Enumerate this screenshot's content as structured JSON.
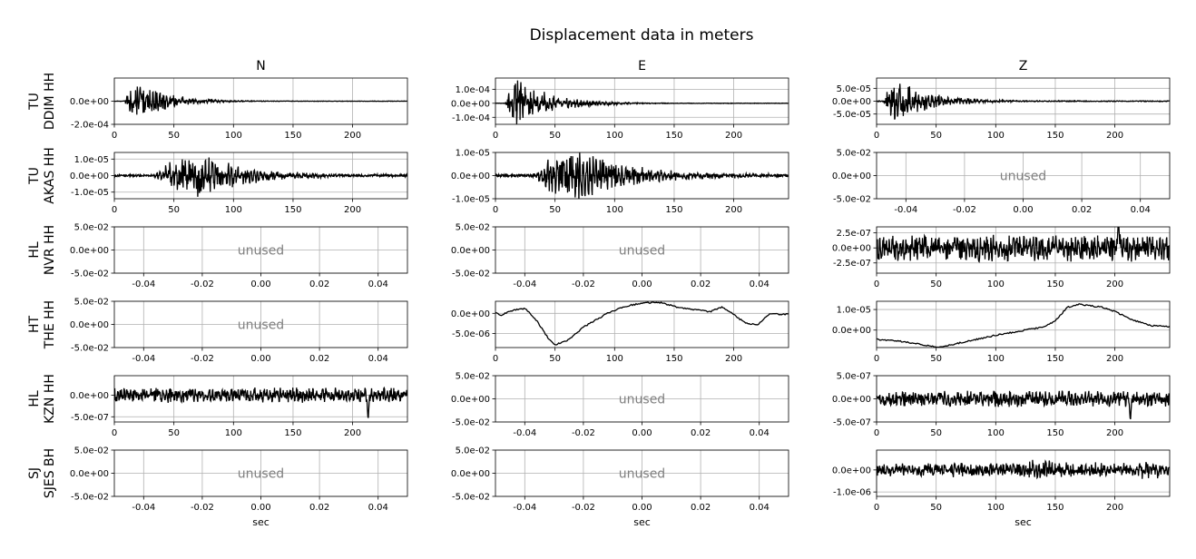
{
  "figure": {
    "title": "Displacement data in meters",
    "column_titles": [
      "N",
      "E",
      "Z"
    ],
    "row_labels": [
      [
        "TU",
        "DDIM HH"
      ],
      [
        "TU",
        "AKAS HH"
      ],
      [
        "HL",
        "NVR HH"
      ],
      [
        "HT",
        "THE HH"
      ],
      [
        "HL",
        "KZN HH"
      ],
      [
        "SJ",
        "SJES BH"
      ]
    ],
    "xlabel": "sec",
    "unused_label": "unused"
  },
  "chart_data": {
    "type": "line",
    "title": "Displacement data in meters",
    "xlabel": "sec",
    "grid": true,
    "time_xlim": [
      0,
      246
    ],
    "time_xticks": [
      0,
      50,
      100,
      150,
      200
    ],
    "unused_xlim": [
      -0.05,
      0.05
    ],
    "unused_xticks": [
      "-0.04",
      "-0.02",
      "0.00",
      "0.02",
      "0.04"
    ],
    "unused_ylim": [
      -0.05,
      0.05
    ],
    "unused_yticks": [
      "-5.0e-02",
      "0.0e+00",
      "5.0e-02"
    ],
    "panels": [
      {
        "row": 0,
        "col": 0,
        "station": "TU DDIM HH",
        "component": "N",
        "used": true,
        "ylim": [
          -0.0002,
          0.0002
        ],
        "yticks": [
          -0.0002,
          0.0
        ],
        "ytick_labels": [
          "-2.0e-04",
          "0.0e+00"
        ],
        "amplitude": 0.00018,
        "shape": "burst",
        "burst": [
          8,
          18,
          25
        ],
        "noise": 1.5e-06
      },
      {
        "row": 0,
        "col": 1,
        "station": "TU DDIM HH",
        "component": "E",
        "used": true,
        "ylim": [
          -0.00015,
          0.00018
        ],
        "yticks": [
          -0.0001,
          0.0,
          0.0001
        ],
        "ytick_labels": [
          "-1.0e-04",
          "0.0e+00",
          "1.0e-04"
        ],
        "amplitude": 0.00018,
        "shape": "burst",
        "burst": [
          8,
          16,
          28
        ],
        "noise": 1.5e-06
      },
      {
        "row": 0,
        "col": 2,
        "station": "TU DDIM HH",
        "component": "Z",
        "used": true,
        "ylim": [
          -9e-05,
          9e-05
        ],
        "yticks": [
          -5e-05,
          0.0,
          5e-05
        ],
        "ytick_labels": [
          "-5.0e-05",
          "0.0e+00",
          "5.0e-05"
        ],
        "amplitude": 9e-05,
        "shape": "burst",
        "burst": [
          6,
          12,
          30
        ],
        "noise": 1.5e-06
      },
      {
        "row": 1,
        "col": 0,
        "station": "TU AKAS HH",
        "component": "N",
        "used": true,
        "ylim": [
          -1.4e-05,
          1.4e-05
        ],
        "yticks": [
          -1e-05,
          0.0,
          1e-05
        ],
        "ytick_labels": [
          "-1.0e-05",
          "0.0e+00",
          "1.0e-05"
        ],
        "amplitude": 1.3e-05,
        "shape": "doubleburst",
        "burst": [
          32,
          72,
          40
        ],
        "noise": 6e-07
      },
      {
        "row": 1,
        "col": 1,
        "station": "TU AKAS HH",
        "component": "E",
        "used": true,
        "ylim": [
          -1e-05,
          1e-05
        ],
        "yticks": [
          -1e-05,
          0.0,
          1e-05
        ],
        "ytick_labels": [
          "-1.0e-05",
          "0.0e+00",
          "1.0e-05"
        ],
        "amplitude": 1.1e-05,
        "shape": "doubleburst",
        "burst": [
          30,
          70,
          45
        ],
        "noise": 6e-07
      },
      {
        "row": 1,
        "col": 2,
        "station": "TU AKAS HH",
        "component": "Z",
        "used": false
      },
      {
        "row": 2,
        "col": 0,
        "station": "HL NVR HH",
        "component": "N",
        "used": false
      },
      {
        "row": 2,
        "col": 1,
        "station": "HL NVR HH",
        "component": "E",
        "used": false
      },
      {
        "row": 2,
        "col": 2,
        "station": "HL NVR HH",
        "component": "Z",
        "used": true,
        "ylim": [
          -5e-05,
          4e-05
        ],
        "yticks": [
          -2.5e-07,
          0.0,
          2.5e-07
        ],
        "ytick_labels": [
          "-2.5e-07",
          "0.0e+00",
          "2.5e-07"
        ],
        "ylim_note": "units e-07",
        "amplitude": 2.8e-07,
        "shape": "noise",
        "spike": [
          203,
          5e-07
        ]
      },
      {
        "row": 3,
        "col": 0,
        "station": "HT THE HH",
        "component": "N",
        "used": false
      },
      {
        "row": 3,
        "col": 1,
        "station": "HT THE HH",
        "component": "E",
        "used": true,
        "ylim": [
          -8.5e-06,
          3e-06
        ],
        "yticks": [
          -5e-06,
          0.0
        ],
        "ytick_labels": [
          "-5.0e-06",
          "0.0e+00"
        ],
        "shape": "smooth",
        "points": [
          [
            0,
            1e-07
          ],
          [
            5,
            -4e-07
          ],
          [
            15,
            8e-07
          ],
          [
            25,
            1.2e-06
          ],
          [
            35,
            -2e-06
          ],
          [
            45,
            -6.5e-06
          ],
          [
            50,
            -7.8e-06
          ],
          [
            60,
            -6.8e-06
          ],
          [
            75,
            -3.2e-06
          ],
          [
            95,
            2e-07
          ],
          [
            110,
            1.8e-06
          ],
          [
            125,
            2.7e-06
          ],
          [
            140,
            2.6e-06
          ],
          [
            155,
            1.3e-06
          ],
          [
            170,
            8e-07
          ],
          [
            180,
            4e-07
          ],
          [
            190,
            1.5e-06
          ],
          [
            200,
            -3e-07
          ],
          [
            210,
            -2.5e-06
          ],
          [
            220,
            -2.8e-06
          ],
          [
            230,
            -2e-07
          ],
          [
            246,
            -2e-07
          ]
        ]
      },
      {
        "row": 3,
        "col": 2,
        "station": "HT THE HH",
        "component": "Z",
        "used": true,
        "ylim": [
          -8.5e-06,
          1.4e-05
        ],
        "yticks": [
          0.0,
          1e-05
        ],
        "ytick_labels": [
          "0.0e+00",
          "1.0e-05"
        ],
        "shape": "smooth",
        "points": [
          [
            0,
            -4.5e-06
          ],
          [
            20,
            -5.5e-06
          ],
          [
            35,
            -6.8e-06
          ],
          [
            50,
            -8.2e-06
          ],
          [
            60,
            -7.4e-06
          ],
          [
            80,
            -5e-06
          ],
          [
            100,
            -2.5e-06
          ],
          [
            120,
            -5e-07
          ],
          [
            140,
            1.5e-06
          ],
          [
            150,
            4.5e-06
          ],
          [
            160,
            1.1e-05
          ],
          [
            170,
            1.25e-05
          ],
          [
            190,
            1.1e-05
          ],
          [
            200,
            9e-06
          ],
          [
            215,
            5e-06
          ],
          [
            230,
            2.2e-06
          ],
          [
            246,
            1.8e-06
          ]
        ]
      },
      {
        "row": 4,
        "col": 0,
        "station": "HL KZN HH",
        "component": "N",
        "used": true,
        "ylim": [
          -6.2e-07,
          4.5e-07
        ],
        "yticks": [
          -5e-07,
          0.0
        ],
        "ytick_labels": [
          "-5.0e-07",
          "0.0e+00"
        ],
        "amplitude": 2.2e-07,
        "shape": "noise",
        "spike": [
          213,
          -6e-07
        ]
      },
      {
        "row": 4,
        "col": 1,
        "station": "HL KZN HH",
        "component": "E",
        "used": false
      },
      {
        "row": 4,
        "col": 2,
        "station": "HL KZN HH",
        "component": "Z",
        "used": true,
        "ylim": [
          -5e-07,
          5e-07
        ],
        "yticks": [
          -5e-07,
          0.0,
          5e-07
        ],
        "ytick_labels": [
          "-5.0e-07",
          "0.0e+00",
          "5.0e-07"
        ],
        "amplitude": 2.2e-07,
        "shape": "noise",
        "spike": [
          213,
          -5e-07
        ]
      },
      {
        "row": 5,
        "col": 0,
        "station": "SJ SJES BH",
        "component": "N",
        "used": false
      },
      {
        "row": 5,
        "col": 1,
        "station": "SJ SJES BH",
        "component": "E",
        "used": false
      },
      {
        "row": 5,
        "col": 2,
        "station": "SJ SJES BH",
        "component": "Z",
        "used": true,
        "ylim": [
          -1.2e-06,
          9e-07
        ],
        "yticks": [
          -1e-06,
          0.0
        ],
        "ytick_labels": [
          "-1.0e-06",
          "0.0e+00"
        ],
        "amplitude": 3.2e-07,
        "shape": "burstnoise",
        "burst": [
          135,
          145,
          30
        ],
        "noise": 1.8e-07
      }
    ]
  }
}
